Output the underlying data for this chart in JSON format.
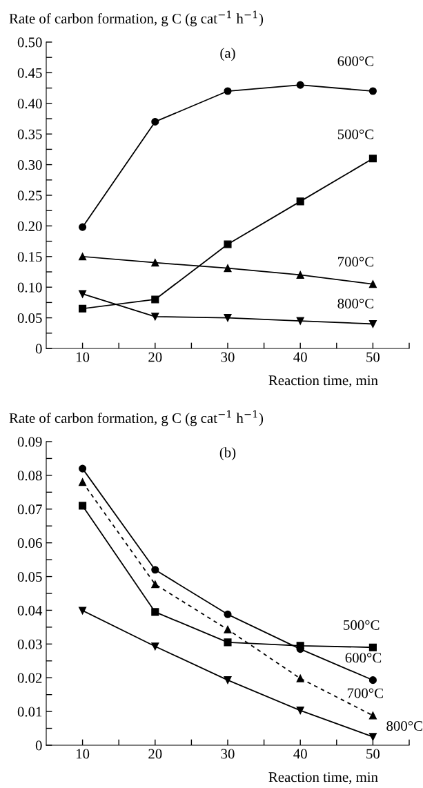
{
  "chart_data": [
    {
      "type": "line",
      "title": "(a)",
      "ylabel": "Rate of carbon formation, g C (g cat$^{−1}$ h$^{−1}$)",
      "xlabel": "Reaction time, min",
      "x": [
        10,
        20,
        30,
        40,
        50
      ],
      "series": [
        {
          "name": "600°C",
          "color": "#000000",
          "marker": "circle",
          "line_style": "solid",
          "values": [
            0.198,
            0.37,
            0.42,
            0.43,
            0.42
          ]
        },
        {
          "name": "500°C",
          "color": "#000000",
          "marker": "square",
          "line_style": "solid",
          "values": [
            0.065,
            0.08,
            0.17,
            0.24,
            0.31
          ]
        },
        {
          "name": "700°C",
          "color": "#000000",
          "marker": "triangle",
          "line_style": "solid",
          "values": [
            0.15,
            0.14,
            0.131,
            0.12,
            0.105
          ]
        },
        {
          "name": "800°C",
          "color": "#000000",
          "marker": "triangle_down",
          "line_style": "solid",
          "values": [
            0.089,
            0.052,
            0.05,
            0.045,
            0.04
          ]
        }
      ],
      "xlim": [
        5,
        55
      ],
      "xticks": [
        10,
        {
          "value": 15,
          "label": null
        },
        20,
        {
          "value": 25,
          "label": null
        },
        30,
        {
          "value": 35,
          "label": null
        },
        40,
        {
          "value": 45,
          "label": null
        },
        50,
        {
          "value": 55,
          "label": null
        }
      ],
      "ylim": [
        0,
        0.5
      ],
      "yticks": [
        0,
        {
          "value": 0.025,
          "label": null
        },
        {
          "value": 0.05,
          "label": "0.05"
        },
        {
          "value": 0.075,
          "label": null
        },
        {
          "value": 0.1,
          "label": "0.10"
        },
        {
          "value": 0.125,
          "label": null
        },
        {
          "value": 0.15,
          "label": "0.15"
        },
        {
          "value": 0.175,
          "label": null
        },
        {
          "value": 0.2,
          "label": "0.20"
        },
        {
          "value": 0.225,
          "label": null
        },
        {
          "value": 0.25,
          "label": "0.25"
        },
        {
          "value": 0.275,
          "label": null
        },
        {
          "value": 0.3,
          "label": "0.30"
        },
        {
          "value": 0.325,
          "label": null
        },
        {
          "value": 0.35,
          "label": "0.35"
        },
        {
          "value": 0.375,
          "label": null
        },
        {
          "value": 0.4,
          "label": "0.40"
        },
        {
          "value": 0.425,
          "label": null
        },
        {
          "value": 0.45,
          "label": "0.45"
        },
        {
          "value": 0.475,
          "label": null
        },
        {
          "value": 0.5,
          "label": "0.50"
        }
      ],
      "grid": false,
      "legend": false
    },
    {
      "type": "line",
      "title": "(b)",
      "ylabel": "Rate of carbon formation, g C (g cat$^{−1}$ h$^{−1}$)",
      "xlabel": "Reaction time, min",
      "x": [
        10,
        20,
        30,
        40,
        50
      ],
      "series": [
        {
          "name": "500°C",
          "color": "#000000",
          "marker": "square",
          "line_style": "solid",
          "values": [
            0.071,
            0.0395,
            0.0305,
            0.0295,
            0.029
          ]
        },
        {
          "name": "600°C",
          "color": "#000000",
          "marker": "circle",
          "line_style": "solid",
          "values": [
            0.082,
            0.052,
            0.0388,
            0.0285,
            0.0193
          ]
        },
        {
          "name": "700°C",
          "color": "#000000",
          "marker": "triangle",
          "line_style": "dashed",
          "values": [
            0.078,
            0.0477,
            0.0343,
            0.0198,
            0.0088
          ]
        },
        {
          "name": "800°C",
          "color": "#000000",
          "marker": "triangle_down",
          "line_style": "solid",
          "values": [
            0.0399,
            0.0293,
            0.0193,
            0.0103,
            0.0025
          ]
        }
      ],
      "xlim": [
        5,
        55
      ],
      "xticks": [
        10,
        {
          "value": 15,
          "label": null
        },
        20,
        {
          "value": 25,
          "label": null
        },
        30,
        {
          "value": 35,
          "label": null
        },
        40,
        {
          "value": 45,
          "label": null
        },
        50,
        {
          "value": 55,
          "label": null
        }
      ],
      "ylim": [
        0,
        0.09
      ],
      "yticks": [
        0,
        {
          "value": 0.005,
          "label": null
        },
        0.01,
        {
          "value": 0.015,
          "label": null
        },
        0.02,
        {
          "value": 0.025,
          "label": null
        },
        0.03,
        {
          "value": 0.035,
          "label": null
        },
        0.04,
        {
          "value": 0.045,
          "label": null
        },
        0.05,
        {
          "value": 0.055,
          "label": null
        },
        0.06,
        {
          "value": 0.065,
          "label": null
        },
        0.07,
        {
          "value": 0.075,
          "label": null
        },
        0.08,
        {
          "value": 0.085,
          "label": null
        },
        0.09
      ],
      "grid": false,
      "legend": false
    }
  ]
}
